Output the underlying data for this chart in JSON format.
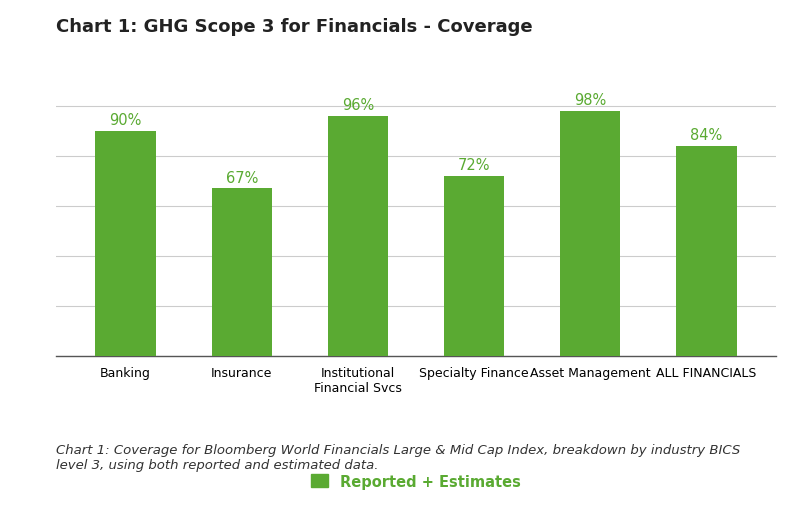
{
  "title": "Chart 1: GHG Scope 3 for Financials - Coverage",
  "categories": [
    "Banking",
    "Insurance",
    "Institutional\nFinancial Svcs",
    "Specialty Finance",
    "Asset Management",
    "ALL FINANCIALS"
  ],
  "values": [
    90,
    67,
    96,
    72,
    98,
    84
  ],
  "bar_color": "#5aaa32",
  "label_color": "#5aaa32",
  "label_fontsize": 10.5,
  "bar_width": 0.52,
  "ylim": [
    0,
    110
  ],
  "yticks": [
    0,
    20,
    40,
    60,
    80,
    100
  ],
  "grid_color": "#cccccc",
  "background_color": "#ffffff",
  "legend_label": "Reported + Estimates",
  "legend_color": "#5aaa32",
  "footnote": "Chart 1: Coverage for Bloomberg World Financials Large & Mid Cap Index, breakdown by industry BICS\nlevel 3, using both reported and estimated data.",
  "title_fontsize": 13,
  "footnote_fontsize": 9.5,
  "tick_fontsize": 9,
  "legend_fontsize": 10.5
}
